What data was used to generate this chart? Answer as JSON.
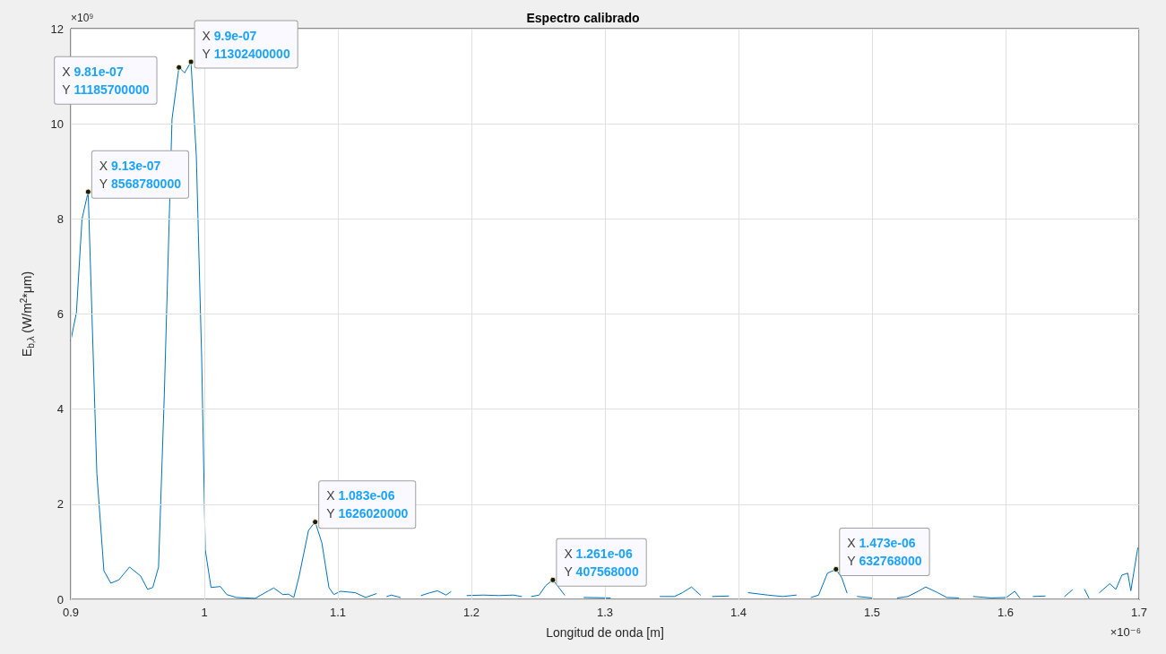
{
  "chart_data": {
    "type": "line",
    "title": "Espectro calibrado",
    "xlabel": "Longitud de onda [m]",
    "ylabel": "E$_{b,λ}$ (W/m$^{2}$*μm)",
    "x": [
      0.9,
      0.9042,
      0.9084,
      0.913,
      0.9195,
      0.9248,
      0.93,
      0.936,
      0.944,
      0.9523,
      0.9575,
      0.9614,
      0.9657,
      0.97,
      0.9758,
      0.981,
      0.9852,
      0.99,
      0.994,
      0.998,
      1.0007,
      1.005,
      1.012,
      1.0168,
      1.024,
      1.038,
      1.048,
      1.052,
      1.0588,
      1.063,
      1.067,
      1.071,
      1.078,
      1.083,
      1.088,
      1.0933,
      1.097,
      1.102,
      1.113,
      1.1208,
      1.1288,
      1.133,
      1.1367,
      1.14,
      1.1467,
      1.155,
      1.1624,
      1.169,
      1.1746,
      1.181,
      1.1846,
      1.19,
      1.1967,
      1.209,
      1.2205,
      1.2315,
      1.2375,
      1.241,
      1.245,
      1.2507,
      1.2557,
      1.261,
      1.2698,
      1.277,
      1.2843,
      1.304,
      1.32,
      1.3413,
      1.352,
      1.358,
      1.3648,
      1.3715,
      1.376,
      1.3806,
      1.3926,
      1.4,
      1.4074,
      1.4219,
      1.4331,
      1.4432,
      1.449,
      1.4544,
      1.46,
      1.4666,
      1.473,
      1.4774,
      1.4812,
      1.485,
      1.489,
      1.5002,
      1.51,
      1.519,
      1.5268,
      1.5346,
      1.5402,
      1.5492,
      1.5559,
      1.5648,
      1.57,
      1.576,
      1.5894,
      1.6006,
      1.6069,
      1.6106,
      1.615,
      1.6207,
      1.6296,
      1.637,
      1.6442,
      1.65,
      1.655,
      1.6591,
      1.6624,
      1.666,
      1.6703,
      1.678,
      1.6826,
      1.6871,
      1.6915,
      1.6938,
      1.699
    ],
    "series": [
      {
        "color": "#0072bd",
        "values": [
          5.44,
          6.03,
          8.0,
          8.57,
          2.65,
          0.6,
          0.34,
          0.41,
          0.68,
          0.49,
          0.21,
          0.25,
          0.68,
          4.28,
          10.1,
          11.19,
          11.07,
          11.3,
          9.32,
          5.07,
          1.04,
          0.25,
          0.27,
          0.1,
          0.04,
          0.02,
          0.18,
          0.24,
          0.1,
          0.11,
          0.04,
          0.49,
          1.45,
          1.63,
          1.19,
          0.25,
          0.1,
          0.17,
          0.14,
          0.04,
          0.12,
          null,
          0.06,
          0.09,
          0.04,
          null,
          0.08,
          0.14,
          0.18,
          0.09,
          0.16,
          null,
          0.08,
          0.09,
          0.08,
          0.09,
          0.06,
          null,
          0.06,
          0.09,
          0.29,
          0.41,
          0.09,
          null,
          0.04,
          0.03,
          null,
          0.06,
          0.06,
          0.14,
          0.26,
          0.09,
          null,
          0.06,
          0.07,
          null,
          0.14,
          0.09,
          0.06,
          0.09,
          null,
          0.04,
          0.09,
          0.55,
          0.63,
          0.45,
          0.14,
          null,
          0.06,
          0.03,
          null,
          0.03,
          0.06,
          0.17,
          0.26,
          0.14,
          0.04,
          0.03,
          null,
          0.06,
          0.03,
          0.04,
          0.17,
          0.03,
          null,
          0.06,
          0.07,
          null,
          0.06,
          0.2,
          null,
          0.21,
          0.03,
          null,
          0.14,
          0.33,
          0.21,
          0.51,
          0.55,
          0.18,
          1.08
        ]
      }
    ],
    "xlim": [
      0.9,
      1.7
    ],
    "xticks": [
      0.9,
      1,
      1.1,
      1.2,
      1.3,
      1.4,
      1.5,
      1.6,
      1.7
    ],
    "ylim": [
      0,
      12
    ],
    "yticks": [
      0,
      2,
      4,
      6,
      8,
      10,
      12
    ],
    "grid": true,
    "marker": "none",
    "line_style": "solid",
    "annotations": [
      "×10⁹",
      "×10⁻⁶",
      {
        "text": "X 9.13e-07\nY 8568780000",
        "x": 0.913,
        "y": 8.56878
      },
      {
        "text": "X 9.81e-07\nY 11185700000",
        "x": 0.981,
        "y": 11.1857
      },
      {
        "text": "X 9.9e-07\nY 11302400000",
        "x": 0.99,
        "y": 11.3024
      },
      {
        "text": "X 1.083e-06\nY 1626020000",
        "x": 1.083,
        "y": 1.62602
      },
      {
        "text": "X 1.261e-06\nY 407568000",
        "x": 1.261,
        "y": 0.407568
      },
      {
        "text": "X 1.473e-06\nY 632768000",
        "x": 1.473,
        "y": 0.632768
      }
    ]
  }
}
